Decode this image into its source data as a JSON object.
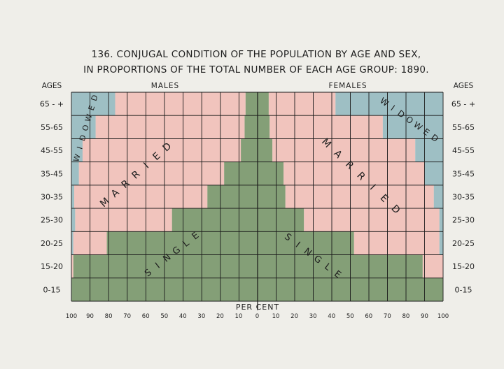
{
  "chart_data": {
    "type": "bar",
    "title_line1": "136. CONJUGAL CONDITION OF THE POPULATION BY AGE AND SEX,",
    "title_line2": "IN PROPORTIONS OF THE TOTAL NUMBER OF EACH AGE GROUP: 1890.",
    "left_header": "AGES",
    "right_header": "AGES",
    "males_label": "MALES",
    "females_label": "FEMALES",
    "xlabel": "PER CENT",
    "xlim": [
      0,
      100
    ],
    "x_ticks": [
      "100",
      "90",
      "80",
      "70",
      "60",
      "50",
      "40",
      "30",
      "20",
      "10",
      "0",
      "10",
      "20",
      "30",
      "40",
      "50",
      "60",
      "70",
      "80",
      "90",
      "100"
    ],
    "categories": [
      "65 - +",
      "55-65",
      "45-55",
      "35-45",
      "30-35",
      "25-30",
      "20-25",
      "15-20",
      "0-15"
    ],
    "series": [
      {
        "name": "SINGLE",
        "males": [
          6.5,
          7,
          9,
          18,
          27,
          46,
          81,
          99,
          100
        ],
        "females": [
          6,
          6.5,
          8,
          14,
          15,
          25,
          52,
          89,
          100
        ]
      },
      {
        "name": "MARRIED",
        "males": [
          70,
          80,
          85,
          78,
          71.5,
          52,
          18,
          1,
          0
        ],
        "females": [
          36,
          61,
          77,
          76,
          80,
          73,
          46,
          11,
          0
        ]
      },
      {
        "name": "WIDOWED",
        "males": [
          23.5,
          13,
          6,
          4,
          1.5,
          2,
          1,
          0,
          0
        ],
        "females": [
          58,
          32.5,
          15,
          10,
          5,
          2,
          2,
          0,
          0
        ]
      }
    ],
    "labels": {
      "widowed_left": "WIDOWED",
      "widowed_right": "WIDOWED",
      "married_left": "MARRIED",
      "married_right": "MARRIED",
      "single_left": "SINGLE",
      "single_right": "SINGLE"
    },
    "colors": {
      "single": "#849f77",
      "married": "#f1c4bd",
      "widowed": "#9ebfc4",
      "grid": "#1a1a1a",
      "background": "#efeee9"
    },
    "grid": true
  }
}
